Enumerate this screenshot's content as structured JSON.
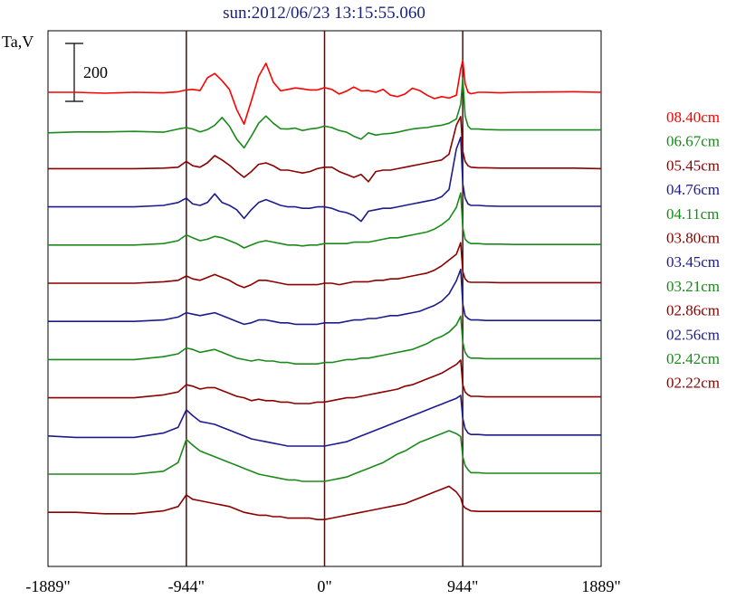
{
  "chart_data": {
    "type": "line",
    "title": "sun:2012/06/23 13:15:55.060",
    "ylabel": "Ta,V",
    "scale_bar": {
      "label": "200",
      "value": 200
    },
    "xlim": [
      -1889,
      1889
    ],
    "x_ticks": [
      {
        "value": -1889,
        "label": "-1889\""
      },
      {
        "value": -944,
        "label": "-944\""
      },
      {
        "value": 0,
        "label": "0\""
      },
      {
        "value": 944,
        "label": "944\""
      },
      {
        "value": 1889,
        "label": "1889\""
      }
    ],
    "vertical_lines": [
      -944,
      0,
      944
    ],
    "grid": false,
    "legend_position": "right",
    "x": [
      -1889,
      -1700,
      -1500,
      -1300,
      -1100,
      -1000,
      -944,
      -900,
      -850,
      -800,
      -750,
      -700,
      -650,
      -600,
      -550,
      -500,
      -450,
      -400,
      -350,
      -300,
      -250,
      -200,
      -150,
      -100,
      -50,
      0,
      50,
      100,
      150,
      200,
      250,
      300,
      350,
      400,
      450,
      500,
      550,
      600,
      650,
      700,
      750,
      800,
      850,
      900,
      930,
      944,
      960,
      980,
      1000,
      1050,
      1100,
      1200,
      1300,
      1500,
      1700,
      1889
    ],
    "series": [
      {
        "name": "08.40cm",
        "color": "#ff0000",
        "values": [
          0,
          0,
          -3,
          0,
          -2,
          2,
          8,
          10,
          6,
          50,
          65,
          40,
          10,
          -60,
          -110,
          -30,
          55,
          100,
          35,
          5,
          10,
          15,
          12,
          8,
          8,
          16,
          10,
          -6,
          4,
          18,
          5,
          6,
          0,
          10,
          -10,
          -15,
          -6,
          14,
          6,
          -10,
          -22,
          -15,
          -20,
          -10,
          80,
          110,
          30,
          0,
          -5,
          0,
          0,
          -2,
          0,
          1,
          2,
          0
        ]
      },
      {
        "name": "06.67cm",
        "color": "#1a8a1a",
        "values": [
          -8,
          -5,
          -5,
          -3,
          -6,
          5,
          10,
          5,
          -5,
          3,
          18,
          45,
          15,
          -30,
          -60,
          -20,
          25,
          50,
          25,
          6,
          5,
          8,
          0,
          5,
          8,
          15,
          10,
          0,
          -6,
          -20,
          -30,
          -8,
          -16,
          -12,
          -10,
          -6,
          0,
          5,
          8,
          10,
          15,
          18,
          25,
          40,
          90,
          180,
          50,
          15,
          5,
          5,
          3,
          2,
          2,
          2,
          2,
          2
        ]
      },
      {
        "name": "05.45cm",
        "color": "#8b0000",
        "values": [
          0,
          0,
          0,
          0,
          2,
          5,
          25,
          10,
          5,
          20,
          45,
          30,
          12,
          -10,
          -30,
          -10,
          15,
          20,
          10,
          -5,
          -5,
          -10,
          -15,
          -10,
          0,
          5,
          5,
          -10,
          -20,
          -30,
          -20,
          -45,
          -10,
          -5,
          -5,
          0,
          5,
          10,
          15,
          20,
          25,
          30,
          50,
          150,
          180,
          60,
          25,
          10,
          5,
          3,
          3,
          2,
          2,
          2,
          2,
          0
        ]
      },
      {
        "name": "04.76cm",
        "color": "#1c1c8c",
        "values": [
          0,
          0,
          0,
          0,
          5,
          15,
          30,
          10,
          5,
          15,
          45,
          15,
          5,
          -10,
          -40,
          -10,
          15,
          25,
          15,
          5,
          0,
          0,
          -5,
          -5,
          0,
          0,
          -5,
          -15,
          -20,
          -30,
          -50,
          -15,
          -10,
          -5,
          -5,
          0,
          5,
          10,
          15,
          20,
          25,
          35,
          60,
          200,
          240,
          80,
          30,
          10,
          5,
          5,
          3,
          2,
          2,
          2,
          2,
          2
        ]
      },
      {
        "name": "04.11cm",
        "color": "#1a8a1a",
        "values": [
          0,
          0,
          0,
          0,
          5,
          15,
          35,
          25,
          15,
          20,
          30,
          25,
          15,
          5,
          -10,
          0,
          10,
          15,
          10,
          5,
          0,
          0,
          -3,
          0,
          0,
          5,
          5,
          5,
          5,
          10,
          10,
          10,
          15,
          20,
          25,
          25,
          30,
          35,
          40,
          45,
          55,
          70,
          90,
          130,
          180,
          60,
          20,
          10,
          5,
          5,
          3,
          3,
          2,
          2,
          2,
          2
        ]
      },
      {
        "name": "03.80cm",
        "color": "#8b0000",
        "values": [
          0,
          0,
          0,
          0,
          5,
          10,
          25,
          15,
          10,
          20,
          30,
          20,
          10,
          -5,
          -15,
          -5,
          10,
          10,
          5,
          0,
          -5,
          -5,
          -5,
          -5,
          -5,
          0,
          0,
          -5,
          0,
          5,
          5,
          5,
          10,
          10,
          15,
          15,
          20,
          25,
          30,
          35,
          45,
          60,
          80,
          100,
          140,
          40,
          15,
          5,
          3,
          3,
          3,
          2,
          2,
          2,
          2,
          2
        ]
      },
      {
        "name": "03.45cm",
        "color": "#1c1c8c",
        "values": [
          0,
          0,
          0,
          0,
          5,
          15,
          30,
          25,
          20,
          25,
          30,
          20,
          10,
          0,
          -10,
          -5,
          5,
          5,
          0,
          -5,
          -5,
          -10,
          -10,
          -10,
          -10,
          -5,
          -5,
          -5,
          0,
          5,
          5,
          10,
          10,
          15,
          20,
          20,
          25,
          30,
          35,
          45,
          55,
          70,
          95,
          140,
          180,
          60,
          20,
          10,
          5,
          5,
          3,
          3,
          3,
          3,
          3,
          3
        ]
      },
      {
        "name": "03.21cm",
        "color": "#1a8a1a",
        "values": [
          0,
          0,
          0,
          0,
          10,
          20,
          40,
          35,
          25,
          30,
          35,
          25,
          15,
          5,
          0,
          -5,
          0,
          -5,
          -5,
          -10,
          -10,
          -15,
          -15,
          -15,
          -15,
          -10,
          -10,
          -5,
          0,
          0,
          5,
          5,
          10,
          15,
          20,
          25,
          30,
          35,
          45,
          55,
          70,
          80,
          95,
          120,
          150,
          60,
          25,
          10,
          5,
          5,
          3,
          3,
          3,
          3,
          3,
          3
        ]
      },
      {
        "name": "02.86cm",
        "color": "#8b0000",
        "values": [
          0,
          0,
          0,
          0,
          10,
          20,
          45,
          40,
          30,
          35,
          35,
          25,
          15,
          5,
          0,
          -10,
          -5,
          -10,
          -10,
          -15,
          -15,
          -20,
          -20,
          -20,
          -15,
          -15,
          -10,
          -5,
          0,
          0,
          5,
          10,
          15,
          20,
          25,
          30,
          40,
          45,
          55,
          65,
          75,
          85,
          100,
          115,
          130,
          45,
          20,
          10,
          5,
          5,
          3,
          3,
          3,
          3,
          3,
          3
        ]
      },
      {
        "name": "02.56cm",
        "color": "#1c1c8c",
        "values": [
          0,
          -5,
          -5,
          -5,
          10,
          30,
          90,
          70,
          50,
          45,
          40,
          30,
          20,
          10,
          0,
          -10,
          -15,
          -20,
          -25,
          -30,
          -35,
          -35,
          -35,
          -35,
          -35,
          -35,
          -30,
          -25,
          -20,
          -10,
          0,
          10,
          20,
          30,
          40,
          50,
          60,
          70,
          80,
          90,
          100,
          110,
          120,
          130,
          140,
          60,
          25,
          10,
          5,
          5,
          3,
          3,
          3,
          3,
          3,
          3
        ]
      },
      {
        "name": "02.42cm",
        "color": "#1a8a1a",
        "values": [
          0,
          0,
          0,
          0,
          10,
          40,
          120,
          100,
          80,
          70,
          60,
          50,
          40,
          30,
          20,
          10,
          0,
          -5,
          -10,
          -15,
          -20,
          -20,
          -25,
          -25,
          -25,
          -25,
          -20,
          -15,
          -10,
          0,
          10,
          20,
          30,
          40,
          55,
          70,
          80,
          95,
          110,
          120,
          130,
          140,
          150,
          140,
          130,
          60,
          30,
          15,
          5,
          5,
          3,
          3,
          3,
          3,
          3,
          3
        ]
      },
      {
        "name": "02.22cm",
        "color": "#8b0000",
        "values": [
          0,
          0,
          -5,
          -5,
          5,
          20,
          60,
          45,
          40,
          35,
          30,
          25,
          20,
          10,
          0,
          -5,
          -10,
          -10,
          -15,
          -15,
          -20,
          -20,
          -20,
          -20,
          -25,
          -25,
          -20,
          -15,
          -10,
          -5,
          0,
          5,
          10,
          15,
          20,
          25,
          30,
          40,
          50,
          60,
          70,
          80,
          90,
          70,
          50,
          25,
          15,
          10,
          5,
          3,
          3,
          3,
          3,
          3,
          3,
          3
        ]
      }
    ]
  }
}
